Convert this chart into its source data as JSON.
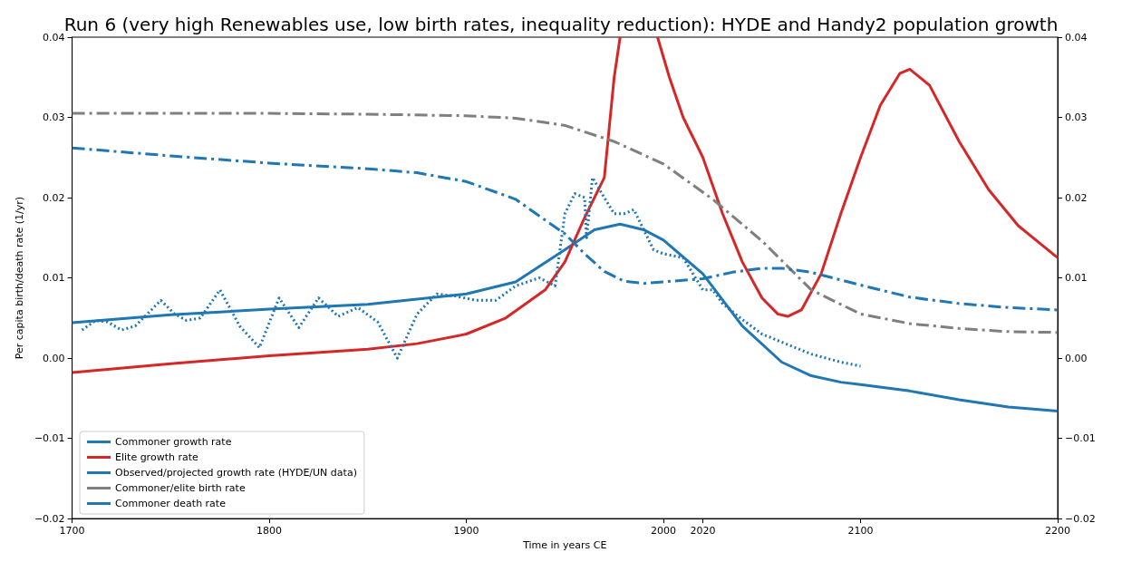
{
  "chart_data": {
    "type": "line",
    "title": "Run 6 (very high Renewables use, low birth rates, inequality reduction): HYDE and Handy2 population growth",
    "xlabel": "Time in years CE",
    "ylabel": "Per capita birth/death rate (1/yr)",
    "xlim": [
      1700,
      2200
    ],
    "xticks": [
      1700,
      1800,
      1900,
      2000,
      2020,
      2100,
      2200
    ],
    "ylim": [
      -0.02,
      0.04
    ],
    "yticks": [
      {
        "value": -0.02,
        "label": "−0.02"
      },
      {
        "value": -0.01,
        "label": "−0.01"
      },
      {
        "value": 0,
        "label": "0.00"
      },
      {
        "value": 0.01,
        "label": "0.01"
      },
      {
        "value": 0.02,
        "label": "0.02"
      },
      {
        "value": 0.03,
        "label": "0.03"
      },
      {
        "value": 0.04,
        "label": "0.04"
      }
    ],
    "y2lim": [
      -0.02,
      0.04
    ],
    "y2ticks": [
      {
        "value": -0.02,
        "label": "−0.02"
      },
      {
        "value": -0.01,
        "label": "−0.01"
      },
      {
        "value": 0,
        "label": "0.00"
      },
      {
        "value": 0.01,
        "label": "0.01"
      },
      {
        "value": 0.02,
        "label": "0.02"
      },
      {
        "value": 0.03,
        "label": "0.03"
      },
      {
        "value": 0.04,
        "label": "0.04"
      }
    ],
    "grid": false,
    "legend": "bottom left",
    "marker": "none",
    "series": [
      {
        "name": "Commoner growth rate",
        "color": "#1f77b4",
        "line_style": "solid",
        "x": [
          1700,
          1750,
          1800,
          1850,
          1900,
          1925,
          1950,
          1965,
          1978,
          1990,
          2000,
          2020,
          2040,
          2060,
          2075,
          2090,
          2100,
          2125,
          2150,
          2175,
          2200
        ],
        "values": [
          0.0044,
          0.0054,
          0.0061,
          0.0067,
          0.008,
          0.0095,
          0.0135,
          0.016,
          0.0167,
          0.016,
          0.0147,
          0.0105,
          0.004,
          -0.0005,
          -0.0022,
          -0.003,
          -0.0033,
          -0.0041,
          -0.0052,
          -0.0061,
          -0.0066
        ]
      },
      {
        "name": "Elite growth rate",
        "color": "#d62728",
        "line_style": "solid",
        "x": [
          1700,
          1750,
          1800,
          1850,
          1875,
          1900,
          1920,
          1940,
          1950,
          1960,
          1970,
          1975,
          1978,
          1988,
          1997,
          2003,
          2010,
          2020,
          2030,
          2040,
          2050,
          2058,
          2063,
          2070,
          2080,
          2090,
          2100,
          2110,
          2120,
          2125,
          2135,
          2150,
          2165,
          2180,
          2200
        ],
        "values": [
          -0.0018,
          -0.0007,
          0.0003,
          0.0011,
          0.0018,
          0.003,
          0.005,
          0.0085,
          0.012,
          0.0175,
          0.0225,
          0.035,
          0.04,
          null,
          0.04,
          0.035,
          0.03,
          0.025,
          0.018,
          0.012,
          0.0075,
          0.0055,
          0.0052,
          0.006,
          0.0105,
          0.018,
          0.025,
          0.0315,
          0.0355,
          0.036,
          0.034,
          0.027,
          0.021,
          0.0165,
          0.0125
        ]
      },
      {
        "name": "Observed/projected growth rate (HYDE/UN data)",
        "color": "#1f77b4",
        "line_style": "dotted",
        "x": [
          1705,
          1712,
          1718,
          1725,
          1732,
          1745,
          1752,
          1758,
          1765,
          1775,
          1785,
          1795,
          1805,
          1815,
          1825,
          1835,
          1845,
          1855,
          1865,
          1875,
          1885,
          1895,
          1905,
          1915,
          1925,
          1937,
          1945,
          1950,
          1955,
          1960,
          1961,
          1964,
          1970,
          1975,
          1980,
          1985,
          1990,
          1995,
          2000,
          2010,
          2020,
          2025,
          2030,
          2040,
          2050,
          2060,
          2075,
          2090,
          2100
        ],
        "values": [
          0.0035,
          0.0047,
          0.0045,
          0.0035,
          0.004,
          0.0072,
          0.0055,
          0.0047,
          0.005,
          0.0085,
          0.004,
          0.0013,
          0.0075,
          0.0038,
          0.0075,
          0.0052,
          0.0063,
          0.0045,
          0.0,
          0.0055,
          0.008,
          0.0077,
          0.0072,
          0.0072,
          0.009,
          0.01,
          0.009,
          0.018,
          0.0205,
          0.02,
          0.015,
          0.0225,
          0.02,
          0.018,
          0.018,
          0.0185,
          0.016,
          0.0135,
          0.013,
          0.0125,
          0.0085,
          0.0085,
          0.0068,
          0.0048,
          0.003,
          0.002,
          0.0005,
          -0.0005,
          -0.001
        ]
      },
      {
        "name": "Commoner/elite birth rate",
        "color": "#7f7f7f",
        "line_style": "dashed",
        "x": [
          1700,
          1800,
          1850,
          1900,
          1925,
          1950,
          1975,
          2000,
          2025,
          2050,
          2075,
          2100,
          2125,
          2150,
          2175,
          2200
        ],
        "values": [
          0.0305,
          0.0305,
          0.0304,
          0.0302,
          0.0299,
          0.029,
          0.027,
          0.0242,
          0.0198,
          0.0146,
          0.0085,
          0.0055,
          0.0043,
          0.0037,
          0.0033,
          0.0032
        ]
      },
      {
        "name": "Commoner death rate",
        "color": "#1f77b4",
        "line_style": "dashed",
        "x": [
          1700,
          1750,
          1800,
          1850,
          1875,
          1900,
          1925,
          1940,
          1950,
          1960,
          1970,
          1980,
          1990,
          2000,
          2020,
          2035,
          2050,
          2060,
          2075,
          2100,
          2125,
          2150,
          2175,
          2200
        ],
        "values": [
          0.0262,
          0.0252,
          0.0243,
          0.0236,
          0.0231,
          0.022,
          0.0198,
          0.0172,
          0.0155,
          0.013,
          0.0108,
          0.0096,
          0.0093,
          0.0095,
          0.0099,
          0.0107,
          0.0112,
          0.0112,
          0.0107,
          0.0091,
          0.0076,
          0.0068,
          0.0063,
          0.006
        ]
      }
    ]
  }
}
